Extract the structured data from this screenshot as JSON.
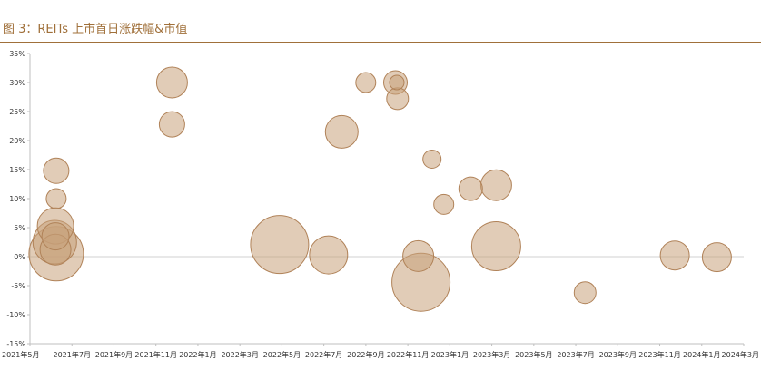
{
  "figure": {
    "title": "图 3：REITs 上市首日涨跌幅&市值"
  },
  "colors": {
    "title": "#a0703a",
    "rule": "#a0703a",
    "bubble_fill": "#c9a27c",
    "bubble_fill_opacity": 0.55,
    "bubble_stroke": "#b08258",
    "axis": "#bfbfbf",
    "zero_line": "#d0d0d0",
    "tick_text": "#333333"
  },
  "chart_data": {
    "type": "scatter",
    "bubble": true,
    "title": "",
    "xlabel": "",
    "ylabel": "",
    "x_unit": "month",
    "x_tick_labels": [
      "2021年5月",
      "2021年7月",
      "2021年9月",
      "2021年11月",
      "2022年1月",
      "2022年3月",
      "2022年5月",
      "2022年7月",
      "2022年9月",
      "2022年11月",
      "2023年1月",
      "2023年3月",
      "2023年5月",
      "2023年7月",
      "2023年9月",
      "2023年11月",
      "2024年1月",
      "2024年3月"
    ],
    "y_ticks": [
      35,
      30,
      25,
      20,
      15,
      10,
      5,
      0,
      -5,
      -10,
      -15
    ],
    "y_tick_labels": [
      "35%",
      "30%",
      "25%",
      "20%",
      "15%",
      "10%",
      "5%",
      "0%",
      "-5%",
      "-10%",
      "-15%"
    ],
    "ylim": [
      -15,
      35
    ],
    "xlim": [
      "2021-05",
      "2024-03"
    ],
    "grid": false,
    "legend": false,
    "points": [
      {
        "date": "2021-06-08",
        "y": 14.8,
        "size": 14
      },
      {
        "date": "2021-06-08",
        "y": 10.0,
        "size": 11
      },
      {
        "date": "2021-06-07",
        "y": 5.3,
        "size": 20
      },
      {
        "date": "2021-06-07",
        "y": 3.5,
        "size": 15
      },
      {
        "date": "2021-06-06",
        "y": 2.5,
        "size": 24
      },
      {
        "date": "2021-06-07",
        "y": 1.2,
        "size": 17
      },
      {
        "date": "2021-06-08",
        "y": 0.5,
        "size": 30
      },
      {
        "date": "2021-11-23",
        "y": 30.0,
        "size": 17
      },
      {
        "date": "2021-11-23",
        "y": 22.8,
        "size": 14
      },
      {
        "date": "2022-04-28",
        "y": 2.1,
        "size": 32
      },
      {
        "date": "2022-07-08",
        "y": 0.3,
        "size": 21
      },
      {
        "date": "2022-07-27",
        "y": 21.5,
        "size": 18
      },
      {
        "date": "2022-08-31",
        "y": 30.0,
        "size": 11
      },
      {
        "date": "2022-10-13",
        "y": 30.0,
        "size": 13
      },
      {
        "date": "2022-10-15",
        "y": 30.0,
        "size": 8
      },
      {
        "date": "2022-10-16",
        "y": 27.2,
        "size": 12
      },
      {
        "date": "2022-11-15",
        "y": 0.1,
        "size": 17
      },
      {
        "date": "2022-11-19",
        "y": -4.4,
        "size": 32
      },
      {
        "date": "2022-12-05",
        "y": 16.8,
        "size": 10
      },
      {
        "date": "2022-12-22",
        "y": 9.0,
        "size": 11
      },
      {
        "date": "2023-01-30",
        "y": 11.7,
        "size": 13
      },
      {
        "date": "2023-03-08",
        "y": 12.3,
        "size": 17
      },
      {
        "date": "2023-03-08",
        "y": 1.8,
        "size": 27
      },
      {
        "date": "2023-07-15",
        "y": -6.2,
        "size": 12
      },
      {
        "date": "2023-11-22",
        "y": 0.2,
        "size": 16
      },
      {
        "date": "2024-01-22",
        "y": -0.1,
        "size": 16
      }
    ]
  }
}
